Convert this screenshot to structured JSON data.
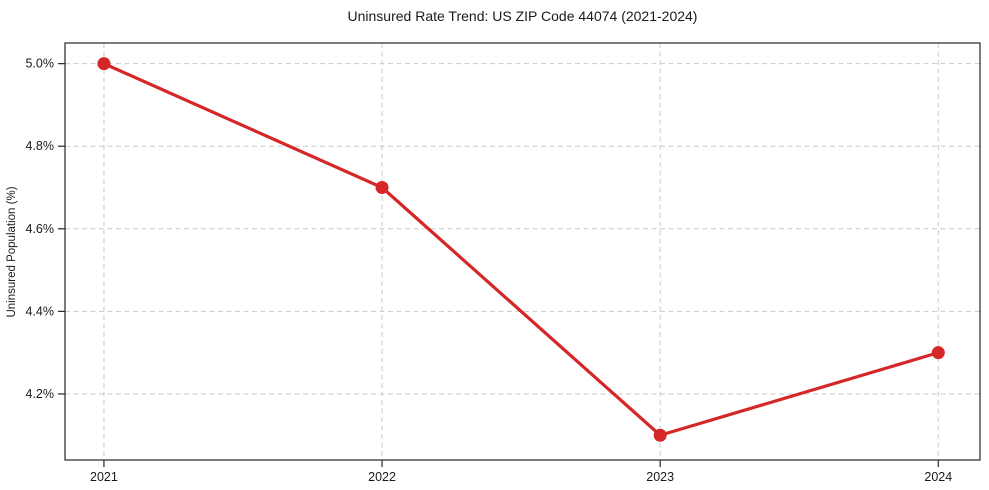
{
  "chart_data": {
    "type": "line",
    "title": "Uninsured Rate Trend: US ZIP Code 44074 (2021-2024)",
    "xlabel": "",
    "ylabel": "Uninsured Population (%)",
    "x": [
      2021,
      2022,
      2023,
      2024
    ],
    "x_tick_labels": [
      "2021",
      "2022",
      "2023",
      "2024"
    ],
    "values": [
      5.0,
      4.7,
      4.1,
      4.3
    ],
    "value_unit": "%",
    "y_ticks": [
      4.2,
      4.4,
      4.6,
      4.8,
      5.0
    ],
    "y_tick_labels": [
      "4.2%",
      "4.4%",
      "4.6%",
      "4.8%",
      "5.0%"
    ],
    "xlim": [
      2020.86,
      2024.15
    ],
    "ylim": [
      4.04,
      5.05
    ],
    "grid": true,
    "grid_style": "dashed",
    "legend": "none",
    "marker": "circle",
    "colors": {
      "line": "#d62728",
      "marker": "#d62728",
      "grid": "#c9c9c9",
      "spine": "#262626",
      "text": "#1a1a1a",
      "background": "#ffffff"
    }
  }
}
